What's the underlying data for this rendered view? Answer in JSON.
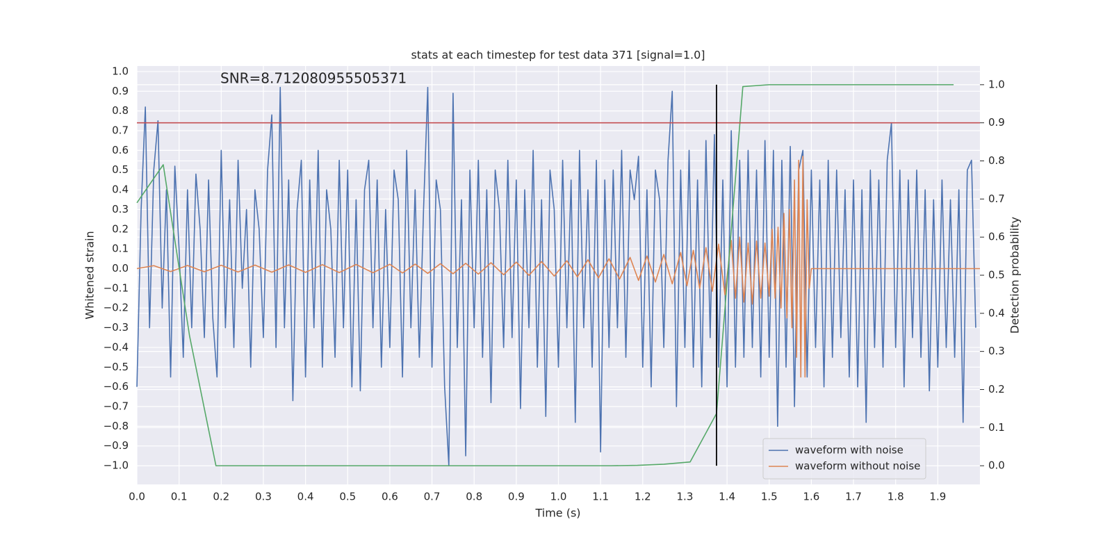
{
  "chart_data": {
    "type": "line",
    "title": "stats at each timestep for test data 371 [signal=1.0]",
    "annotation": "SNR=8.712080955505371",
    "xlabel": "Time (s)",
    "ylabel": "Whitened strain",
    "y2label": "Detection probability",
    "xlim": [
      0,
      2.0
    ],
    "ylim": [
      -1.095,
      1.028
    ],
    "y2lim": [
      -0.049,
      1.049
    ],
    "xticks": [
      {
        "value": 0,
        "label": "0.0"
      },
      0.1,
      0.2,
      0.3,
      0.4,
      0.5,
      0.6,
      0.7,
      0.8,
      0.9,
      {
        "value": 1,
        "label": "1.0"
      },
      1.1,
      1.2,
      1.3,
      1.4,
      1.5,
      1.6,
      1.7,
      1.8,
      1.9
    ],
    "yticks": [
      {
        "value": -1,
        "label": "−1.0"
      },
      {
        "value": -0.9,
        "label": "−0.9"
      },
      {
        "value": -0.8,
        "label": "−0.8"
      },
      {
        "value": -0.7,
        "label": "−0.7"
      },
      {
        "value": -0.6,
        "label": "−0.6"
      },
      {
        "value": -0.5,
        "label": "−0.5"
      },
      {
        "value": -0.4,
        "label": "−0.4"
      },
      {
        "value": -0.3,
        "label": "−0.3"
      },
      {
        "value": -0.2,
        "label": "−0.2"
      },
      {
        "value": -0.1,
        "label": "−0.1"
      },
      {
        "value": 0,
        "label": "0.0"
      },
      0.1,
      0.2,
      0.3,
      0.4,
      0.5,
      0.6,
      0.7,
      0.8,
      0.9,
      {
        "value": 1,
        "label": "1.0"
      }
    ],
    "y2ticks": [
      {
        "value": 0,
        "label": "0.0"
      },
      0.1,
      0.2,
      0.3,
      0.4,
      0.5,
      0.6,
      0.7,
      0.8,
      0.9,
      {
        "value": 1,
        "label": "1.0"
      }
    ],
    "grid": true,
    "legend": "lower right",
    "series": [
      {
        "name": "waveform with noise",
        "color": "#4c72b0",
        "x": [
          0,
          0.01,
          0.02,
          0.03,
          0.04,
          0.05,
          0.06,
          0.07,
          0.08,
          0.09,
          0.1,
          0.11,
          0.12,
          0.13,
          0.14,
          0.15,
          0.16,
          0.17,
          0.18,
          0.19,
          0.2,
          0.21,
          0.22,
          0.23,
          0.24,
          0.25,
          0.26,
          0.27,
          0.28,
          0.29,
          0.3,
          0.31,
          0.32,
          0.33,
          0.34,
          0.35,
          0.36,
          0.37,
          0.38,
          0.39,
          0.4,
          0.41,
          0.42,
          0.43,
          0.44,
          0.45,
          0.46,
          0.47,
          0.48,
          0.49,
          0.5,
          0.51,
          0.52,
          0.53,
          0.54,
          0.55,
          0.56,
          0.57,
          0.58,
          0.59,
          0.6,
          0.61,
          0.62,
          0.63,
          0.64,
          0.65,
          0.66,
          0.67,
          0.68,
          0.69,
          0.7,
          0.71,
          0.72,
          0.73,
          0.74,
          0.75,
          0.76,
          0.77,
          0.78,
          0.79,
          0.8,
          0.81,
          0.82,
          0.83,
          0.84,
          0.85,
          0.86,
          0.87,
          0.88,
          0.89,
          0.9,
          0.91,
          0.92,
          0.93,
          0.94,
          0.95,
          0.96,
          0.97,
          0.98,
          0.99,
          1.0,
          1.01,
          1.02,
          1.03,
          1.04,
          1.05,
          1.06,
          1.07,
          1.08,
          1.09,
          1.1,
          1.11,
          1.12,
          1.13,
          1.14,
          1.15,
          1.16,
          1.17,
          1.18,
          1.19,
          1.2,
          1.21,
          1.22,
          1.23,
          1.24,
          1.25,
          1.26,
          1.27,
          1.28,
          1.29,
          1.3,
          1.31,
          1.32,
          1.33,
          1.34,
          1.35,
          1.36,
          1.37,
          1.38,
          1.39,
          1.4,
          1.41,
          1.42,
          1.43,
          1.44,
          1.45,
          1.46,
          1.47,
          1.48,
          1.49,
          1.5,
          1.51,
          1.52,
          1.53,
          1.54,
          1.55,
          1.56,
          1.57,
          1.58,
          1.59,
          1.6,
          1.61,
          1.62,
          1.63,
          1.64,
          1.65,
          1.66,
          1.67,
          1.68,
          1.69,
          1.7,
          1.71,
          1.72,
          1.73,
          1.74,
          1.75,
          1.76,
          1.77,
          1.78,
          1.79,
          1.8,
          1.81,
          1.82,
          1.83,
          1.84,
          1.85,
          1.86,
          1.87,
          1.88,
          1.89,
          1.9,
          1.91,
          1.92,
          1.93,
          1.94,
          1.95,
          1.96,
          1.97,
          1.98,
          1.99
        ],
        "values": [
          -0.6,
          0.3,
          0.82,
          -0.3,
          0.5,
          0.75,
          -0.2,
          0.4,
          -0.55,
          0.52,
          0.1,
          -0.45,
          0.4,
          -0.3,
          0.48,
          0.2,
          -0.35,
          0.45,
          -0.25,
          -0.55,
          0.6,
          -0.3,
          0.35,
          -0.4,
          0.55,
          -0.1,
          0.3,
          -0.5,
          0.4,
          0.2,
          -0.35,
          0.5,
          0.78,
          -0.4,
          0.92,
          -0.3,
          0.45,
          -0.67,
          0.3,
          0.55,
          -0.55,
          0.45,
          -0.3,
          0.6,
          -0.5,
          0.4,
          0.2,
          -0.45,
          0.55,
          -0.3,
          0.5,
          -0.6,
          0.35,
          -0.62,
          0.4,
          0.55,
          -0.3,
          0.45,
          -0.5,
          0.3,
          -0.4,
          0.5,
          0.35,
          -0.55,
          0.6,
          -0.3,
          0.4,
          -0.45,
          0.3,
          0.92,
          -0.5,
          0.45,
          0.3,
          -0.6,
          -1.0,
          0.89,
          -0.4,
          0.35,
          -0.95,
          0.5,
          -0.3,
          0.55,
          -0.45,
          0.4,
          -0.68,
          0.5,
          0.3,
          -0.4,
          0.55,
          -0.35,
          0.45,
          -0.71,
          0.4,
          -0.3,
          0.6,
          -0.5,
          0.35,
          -0.75,
          0.5,
          0.3,
          -0.5,
          0.55,
          -0.3,
          0.45,
          -0.78,
          0.6,
          -0.3,
          0.4,
          -0.5,
          0.55,
          -0.93,
          0.45,
          -0.4,
          0.5,
          -0.3,
          0.6,
          -0.45,
          0.5,
          0.35,
          0.57,
          -0.5,
          0.4,
          -0.6,
          0.5,
          0.35,
          -0.4,
          0.55,
          0.9,
          -0.7,
          0.5,
          -0.4,
          0.6,
          -0.5,
          0.45,
          -0.6,
          0.65,
          -0.35,
          0.68,
          -0.5,
          0.45,
          -0.6,
          0.7,
          -0.5,
          0.55,
          -0.45,
          0.6,
          -0.4,
          0.5,
          -0.55,
          0.65,
          -0.45,
          0.6,
          -0.8,
          0.55,
          -0.5,
          0.62,
          -0.7,
          0.5,
          0.6,
          -0.55,
          0.5,
          -0.4,
          0.45,
          -0.6,
          0.55,
          -0.45,
          0.5,
          -0.35,
          0.4,
          -0.55,
          0.45,
          -0.6,
          0.4,
          -0.78,
          0.5,
          -0.4,
          0.45,
          -0.5,
          0.55,
          0.74,
          -0.4,
          0.5,
          -0.6,
          0.45,
          -0.35,
          0.5,
          -0.45,
          0.4,
          -0.62,
          0.35,
          -0.5,
          0.45,
          -0.4,
          0.35,
          -0.45,
          0.4,
          -0.78,
          0.5,
          0.55,
          -0.3
        ]
      },
      {
        "name": "waveform without noise",
        "color": "#dd8452",
        "x": [
          0,
          0.04,
          0.08,
          0.12,
          0.16,
          0.2,
          0.24,
          0.28,
          0.32,
          0.36,
          0.4,
          0.44,
          0.48,
          0.52,
          0.56,
          0.6,
          0.63,
          0.66,
          0.69,
          0.72,
          0.75,
          0.78,
          0.81,
          0.84,
          0.87,
          0.9,
          0.93,
          0.96,
          0.99,
          1.02,
          1.045,
          1.07,
          1.095,
          1.12,
          1.145,
          1.17,
          1.19,
          1.21,
          1.23,
          1.25,
          1.27,
          1.29,
          1.305,
          1.32,
          1.335,
          1.35,
          1.365,
          1.38,
          1.395,
          1.41,
          1.42,
          1.43,
          1.44,
          1.45,
          1.46,
          1.47,
          1.48,
          1.49,
          1.5,
          1.507,
          1.514,
          1.521,
          1.528,
          1.535,
          1.542,
          1.548,
          1.554,
          1.56,
          1.565,
          1.57,
          1.575,
          1.58,
          1.585,
          1.59,
          1.595,
          1.6,
          2.0
        ],
        "values": [
          0,
          0.015,
          -0.015,
          0.016,
          -0.016,
          0.017,
          -0.017,
          0.018,
          -0.018,
          0.019,
          -0.019,
          0.02,
          -0.02,
          0.021,
          -0.021,
          0.022,
          -0.022,
          0.023,
          -0.024,
          0.025,
          -0.026,
          0.027,
          -0.028,
          0.03,
          -0.031,
          0.033,
          -0.034,
          0.036,
          -0.038,
          0.04,
          -0.042,
          0.045,
          -0.047,
          0.05,
          -0.053,
          0.057,
          -0.06,
          0.064,
          -0.068,
          0.072,
          -0.077,
          0.082,
          -0.087,
          0.093,
          -0.1,
          0.107,
          -0.115,
          0.124,
          -0.133,
          0.143,
          -0.15,
          0.16,
          -0.17,
          0.13,
          -0.18,
          0.14,
          -0.15,
          0.13,
          -0.14,
          0.2,
          -0.15,
          0.21,
          -0.2,
          0.28,
          -0.25,
          0.3,
          -0.3,
          0.45,
          -0.45,
          0.55,
          -0.55,
          0.57,
          -0.55,
          0.35,
          -0.1,
          0.0,
          0.0
        ]
      },
      {
        "color": "#55a868",
        "axis": "y2",
        "x": [
          0,
          0.0625,
          0.125,
          0.1875,
          0.25,
          0.3125,
          0.375,
          0.4375,
          0.5,
          0.5625,
          0.625,
          0.6875,
          0.75,
          0.8125,
          0.875,
          0.9375,
          1.0,
          1.0625,
          1.125,
          1.1875,
          1.25,
          1.3125,
          1.375,
          1.4375,
          1.5,
          1.5625,
          1.625,
          1.6875,
          1.75,
          1.8125,
          1.875,
          1.9375
        ],
        "values": [
          0.69,
          0.79,
          0.34,
          0.0,
          0.0,
          0.0,
          0.0,
          0.0,
          0.0,
          0.0,
          0.0,
          0.0,
          0.0,
          0.0,
          0.0,
          0.0,
          0.0,
          0.0,
          0.0,
          0.001,
          0.004,
          0.01,
          0.137,
          0.995,
          1.0,
          1.0,
          1.0,
          1.0,
          1.0,
          1.0,
          1.0,
          1.0
        ]
      }
    ],
    "hlines": [
      {
        "y": 0.9,
        "axis": "y2",
        "color": "#c44e52"
      }
    ],
    "vlines": [
      {
        "x": 1.375,
        "ymin": 0,
        "ymax": 1,
        "axis": "y2",
        "color": "#000000"
      }
    ]
  }
}
